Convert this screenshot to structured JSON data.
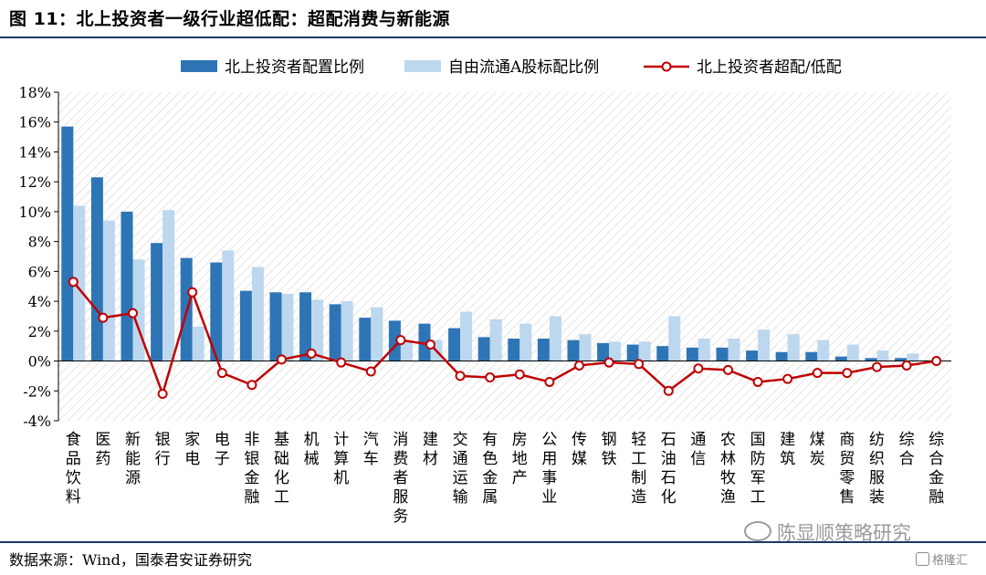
{
  "figure": {
    "title": "图 11：北上投资者一级行业超低配：超配消费与新能源",
    "source": "数据来源：Wind，国泰君安证券研究",
    "watermark": "陈显顺策略研究",
    "corner_logo": "格隆汇"
  },
  "colors": {
    "north_bar": "#2e75b6",
    "float_bar": "#bdd7ee",
    "overweight_line": "#c00000",
    "rule": "#1f3864"
  },
  "chart_data": {
    "type": "bar",
    "categories": [
      "食品饮料",
      "医药",
      "新能源",
      "银行",
      "家电",
      "电子",
      "非银金融",
      "基础化工",
      "机械",
      "计算机",
      "汽车",
      "消费者服务",
      "建材",
      "交通运输",
      "有色金属",
      "房地产",
      "公用事业",
      "传媒",
      "钢铁",
      "轻工制造",
      "石油石化",
      "通信",
      "农林牧渔",
      "国防军工",
      "建筑",
      "煤炭",
      "商贸零售",
      "纺织服装",
      "综合",
      "综合金融"
    ],
    "series": [
      {
        "name": "北上投资者配置比例",
        "type": "bar",
        "values": [
          15.7,
          12.3,
          10.0,
          7.9,
          6.9,
          6.6,
          4.7,
          4.6,
          4.6,
          3.8,
          2.9,
          2.7,
          2.5,
          2.2,
          1.6,
          1.5,
          1.5,
          1.4,
          1.2,
          1.1,
          1.0,
          0.9,
          0.9,
          0.7,
          0.6,
          0.6,
          0.3,
          0.2,
          0.2,
          0.05
        ]
      },
      {
        "name": "自由流通A股标配比例",
        "type": "bar",
        "values": [
          10.4,
          9.4,
          6.8,
          10.1,
          2.3,
          7.4,
          6.3,
          4.5,
          4.1,
          4.0,
          3.6,
          1.3,
          1.4,
          3.3,
          2.8,
          2.5,
          3.0,
          1.8,
          1.3,
          1.3,
          3.0,
          1.5,
          1.5,
          2.1,
          1.8,
          1.4,
          1.1,
          0.7,
          0.5,
          0.05
        ]
      },
      {
        "name": "北上投资者超配/低配",
        "type": "line",
        "values": [
          5.3,
          2.9,
          3.2,
          -2.2,
          4.6,
          -0.8,
          -1.6,
          0.1,
          0.5,
          -0.1,
          -0.7,
          1.4,
          1.1,
          -1.0,
          -1.1,
          -0.9,
          -1.4,
          -0.3,
          -0.1,
          -0.2,
          -2.0,
          -0.5,
          -0.6,
          -1.4,
          -1.2,
          -0.8,
          -0.8,
          -0.4,
          -0.3,
          0.0
        ]
      }
    ],
    "ylim": [
      -4,
      18
    ],
    "yticks": [
      -4,
      -2,
      0,
      2,
      4,
      6,
      8,
      10,
      12,
      14,
      16,
      18
    ],
    "y_tick_format": "percent",
    "grid": "hatched plot area",
    "legend_position": "top"
  }
}
